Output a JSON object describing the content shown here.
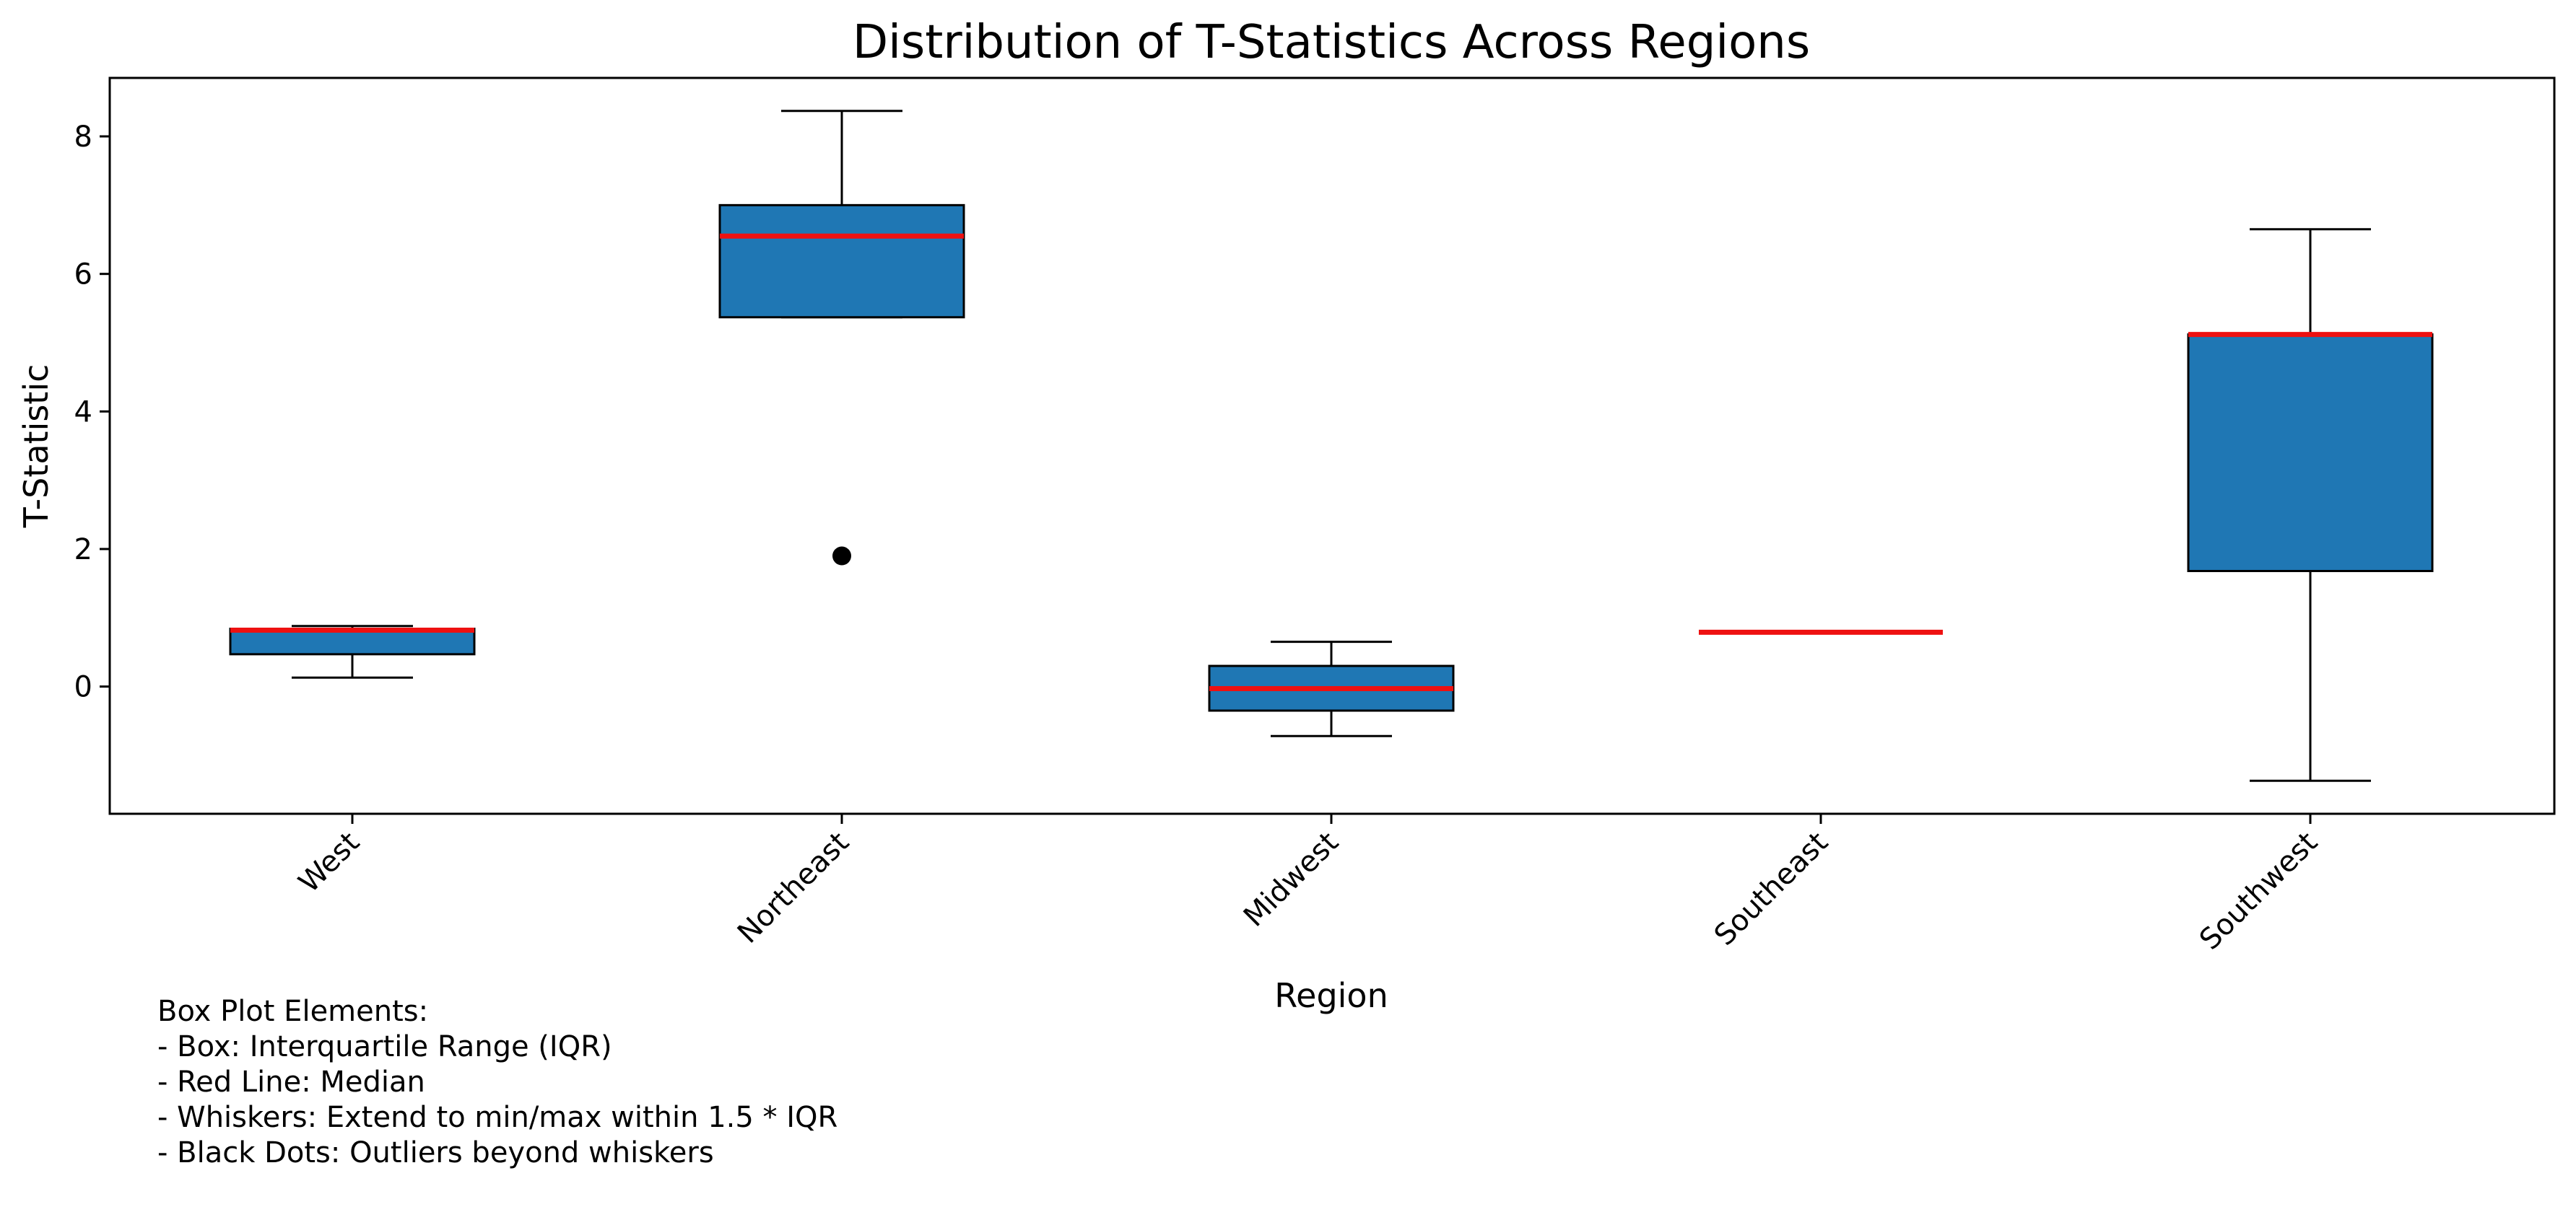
{
  "chart_data": {
    "type": "box",
    "title": "Distribution of T-Statistics Across Regions",
    "xlabel": "Region",
    "ylabel": "T-Statistic",
    "ylim": [
      -1.85,
      8.85
    ],
    "yticks": [
      0,
      2,
      4,
      6,
      8
    ],
    "grid": false,
    "colors": {
      "box_fill": "#1f77b4",
      "median": "#ee1111",
      "outline": "#000000"
    },
    "categories": [
      "West",
      "Northeast",
      "Midwest",
      "Southeast",
      "Southwest"
    ],
    "boxes": [
      {
        "name": "West",
        "whisker_low": 0.13,
        "q1": 0.47,
        "median": 0.82,
        "q3": 0.84,
        "whisker_high": 0.88,
        "outliers": []
      },
      {
        "name": "Northeast",
        "whisker_low": 5.37,
        "q1": 5.37,
        "median": 6.55,
        "q3": 7.0,
        "whisker_high": 8.37,
        "outliers": [
          1.9
        ]
      },
      {
        "name": "Midwest",
        "whisker_low": -0.72,
        "q1": -0.35,
        "median": -0.03,
        "q3": 0.3,
        "whisker_high": 0.65,
        "outliers": []
      },
      {
        "name": "Southeast",
        "whisker_low": 0.79,
        "q1": 0.79,
        "median": 0.79,
        "q3": 0.79,
        "whisker_high": 0.79,
        "outliers": []
      },
      {
        "name": "Southwest",
        "whisker_low": -1.37,
        "q1": 1.68,
        "median": 5.12,
        "q3": 5.12,
        "whisker_high": 6.65,
        "outliers": []
      }
    ]
  },
  "note": {
    "lines": [
      "Box Plot Elements:",
      "- Box: Interquartile Range (IQR)",
      "- Red Line: Median",
      "- Whiskers: Extend to min/max within 1.5 * IQR",
      "- Black Dots: Outliers beyond whiskers"
    ]
  }
}
